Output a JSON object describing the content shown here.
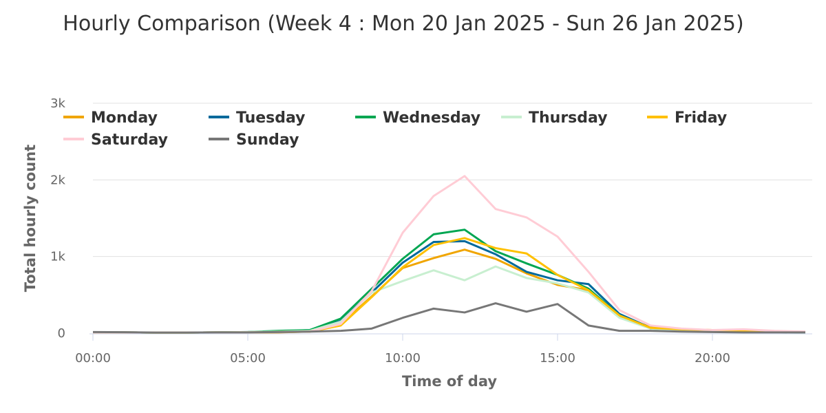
{
  "chart_data": {
    "type": "line",
    "title": "Hourly Comparison (Week 4 : Mon 20 Jan 2025 - Sun 26 Jan 2025)",
    "xlabel": "Time of day",
    "ylabel": "Total hourly count",
    "ylim": [
      0,
      3000
    ],
    "yticks": [
      {
        "v": 0,
        "label": "0"
      },
      {
        "v": 1000,
        "label": "1k"
      },
      {
        "v": 2000,
        "label": "2k"
      },
      {
        "v": 3000,
        "label": "3k"
      }
    ],
    "xticks": [
      {
        "v": 0,
        "label": "00:00"
      },
      {
        "v": 5,
        "label": "05:00"
      },
      {
        "v": 10,
        "label": "10:00"
      },
      {
        "v": 15,
        "label": "15:00"
      },
      {
        "v": 20,
        "label": "20:00"
      }
    ],
    "grid": true,
    "legend_placement": "top",
    "x": [
      0,
      1,
      2,
      3,
      4,
      5,
      6,
      7,
      8,
      9,
      10,
      11,
      12,
      13,
      14,
      15,
      16,
      17,
      18,
      19,
      20,
      21,
      22,
      23
    ],
    "series": [
      {
        "name": "Monday",
        "color": "#f0a500",
        "values": [
          10,
          10,
          8,
          8,
          10,
          10,
          10,
          20,
          120,
          480,
          850,
          980,
          1090,
          970,
          780,
          630,
          560,
          220,
          80,
          50,
          40,
          30,
          20,
          10
        ]
      },
      {
        "name": "Tuesday",
        "color": "#00699b",
        "values": [
          10,
          10,
          8,
          8,
          10,
          15,
          20,
          40,
          160,
          530,
          920,
          1190,
          1200,
          1030,
          800,
          690,
          640,
          250,
          70,
          40,
          30,
          20,
          15,
          10
        ]
      },
      {
        "name": "Wednesday",
        "color": "#00a651",
        "values": [
          10,
          10,
          8,
          8,
          10,
          15,
          30,
          40,
          190,
          580,
          970,
          1290,
          1350,
          1070,
          910,
          760,
          580,
          230,
          60,
          40,
          30,
          20,
          15,
          10
        ]
      },
      {
        "name": "Thursday",
        "color": "#c8efd0",
        "values": [
          10,
          10,
          8,
          8,
          10,
          15,
          20,
          30,
          150,
          530,
          680,
          820,
          690,
          870,
          720,
          650,
          530,
          200,
          60,
          40,
          30,
          20,
          15,
          10
        ]
      },
      {
        "name": "Friday",
        "color": "#ffc000",
        "values": [
          10,
          10,
          8,
          8,
          10,
          10,
          15,
          20,
          100,
          470,
          860,
          1150,
          1240,
          1110,
          1040,
          760,
          560,
          230,
          70,
          50,
          40,
          30,
          20,
          15
        ]
      },
      {
        "name": "Saturday",
        "color": "#ffccd5",
        "values": [
          10,
          10,
          8,
          8,
          10,
          10,
          15,
          20,
          120,
          550,
          1310,
          1790,
          2050,
          1620,
          1510,
          1260,
          800,
          300,
          100,
          60,
          40,
          50,
          30,
          20
        ]
      },
      {
        "name": "Sunday",
        "color": "#777777",
        "values": [
          15,
          12,
          8,
          8,
          10,
          10,
          15,
          20,
          30,
          60,
          200,
          320,
          270,
          390,
          280,
          380,
          100,
          30,
          30,
          20,
          15,
          10,
          10,
          10
        ]
      }
    ]
  }
}
